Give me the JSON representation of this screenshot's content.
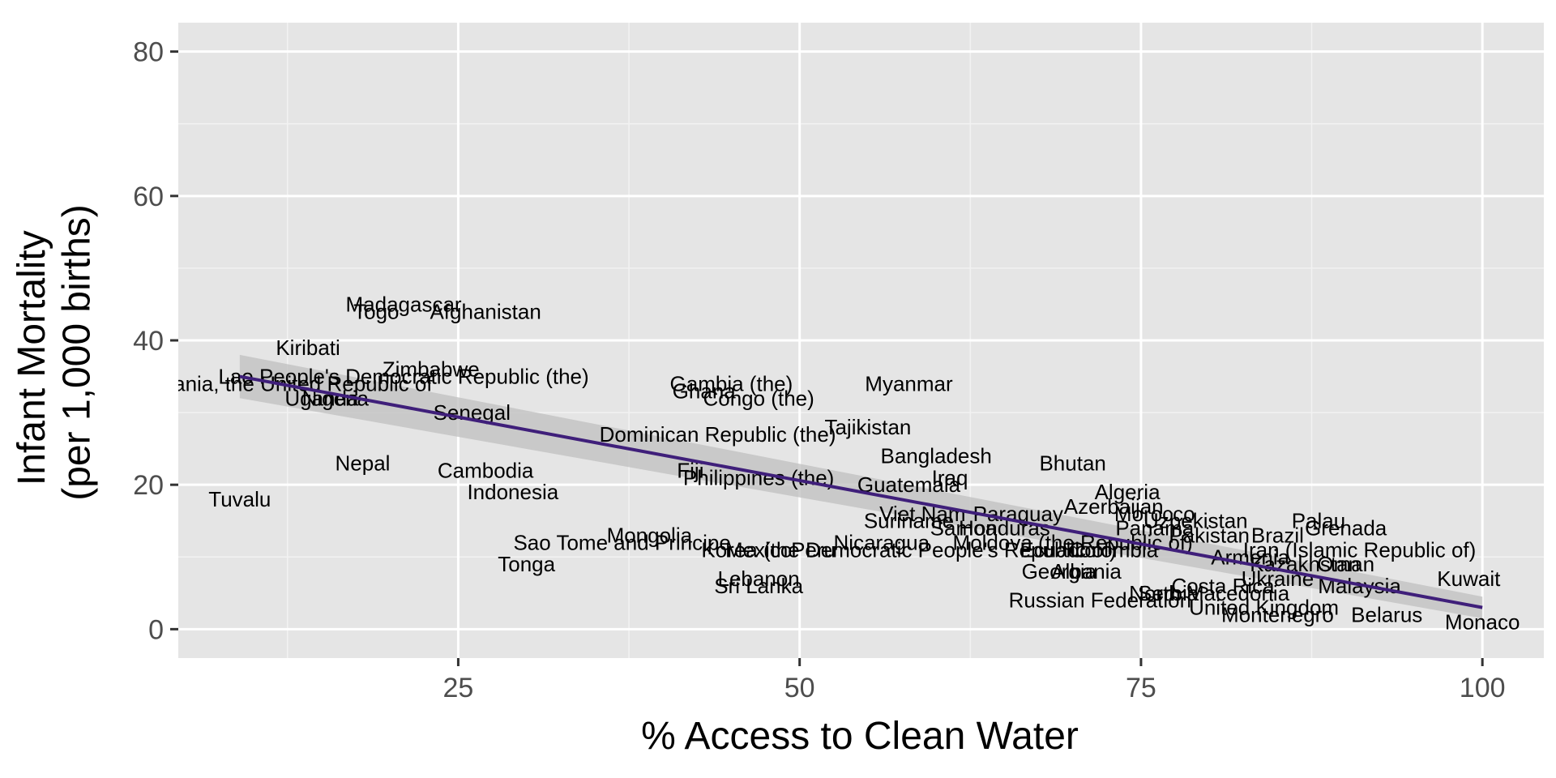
{
  "chart_data": {
    "type": "scatter",
    "xlabel": "% Access to Clean Water",
    "ylabel": [
      "Infant Mortality",
      "(per 1,000 births)"
    ],
    "xlim": [
      4.5,
      104.5
    ],
    "ylim": [
      -4,
      84
    ],
    "x_ticks": [
      25,
      50,
      75,
      100
    ],
    "y_ticks": [
      0,
      20,
      40,
      60,
      80
    ],
    "x_ticks_labels": [
      "25",
      "50",
      "75",
      "100"
    ],
    "y_ticks_labels": [
      "0",
      "20",
      "40",
      "60",
      "80"
    ],
    "grid": true,
    "points": [
      {
        "label": "Madagascar",
        "x": 21,
        "y": 45
      },
      {
        "label": "Togo",
        "x": 19,
        "y": 44
      },
      {
        "label": "Afghanistan",
        "x": 27,
        "y": 44
      },
      {
        "label": "Kiribati",
        "x": 14,
        "y": 39
      },
      {
        "label": "Zimbabwe",
        "x": 23,
        "y": 36
      },
      {
        "label": "Lao People's Democratic Republic (the)",
        "x": 21,
        "y": 35
      },
      {
        "label": "Tanzania, the United Republic of",
        "x": 12,
        "y": 34
      },
      {
        "label": "Uganda",
        "x": 15,
        "y": 32
      },
      {
        "label": "Nigeria",
        "x": 16,
        "y": 32
      },
      {
        "label": "Senegal",
        "x": 26,
        "y": 30
      },
      {
        "label": "Nepal",
        "x": 18,
        "y": 23
      },
      {
        "label": "Cambodia",
        "x": 27,
        "y": 22
      },
      {
        "label": "Indonesia",
        "x": 29,
        "y": 19
      },
      {
        "label": "Tuvalu",
        "x": 9,
        "y": 18
      },
      {
        "label": "Sao Tome and Principe",
        "x": 37,
        "y": 12
      },
      {
        "label": "Mongolia",
        "x": 39,
        "y": 13
      },
      {
        "label": "Mexico",
        "x": 47,
        "y": 11
      },
      {
        "label": "Tonga",
        "x": 30,
        "y": 9
      },
      {
        "label": "Gambia (the)",
        "x": 45,
        "y": 34
      },
      {
        "label": "Ghana",
        "x": 43,
        "y": 33
      },
      {
        "label": "Congo (the)",
        "x": 47,
        "y": 32
      },
      {
        "label": "Myanmar",
        "x": 58,
        "y": 34
      },
      {
        "label": "Dominican Republic (the)",
        "x": 44,
        "y": 27
      },
      {
        "label": "Tajikistan",
        "x": 55,
        "y": 28
      },
      {
        "label": "Bangladesh",
        "x": 60,
        "y": 24
      },
      {
        "label": "Fiji",
        "x": 42,
        "y": 22
      },
      {
        "label": "Iraq",
        "x": 61,
        "y": 21
      },
      {
        "label": "Philippines (the)",
        "x": 47,
        "y": 21
      },
      {
        "label": "Guatemala",
        "x": 58,
        "y": 20
      },
      {
        "label": "Bhutan",
        "x": 70,
        "y": 23
      },
      {
        "label": "Algeria",
        "x": 74,
        "y": 19
      },
      {
        "label": "Azerbaijan",
        "x": 73,
        "y": 17
      },
      {
        "label": "Viet Nam",
        "x": 59,
        "y": 16
      },
      {
        "label": "Paraguay",
        "x": 66,
        "y": 16
      },
      {
        "label": "Suriname",
        "x": 58,
        "y": 15
      },
      {
        "label": "Samoa",
        "x": 62,
        "y": 14
      },
      {
        "label": "Honduras",
        "x": 65,
        "y": 14
      },
      {
        "label": "Morocco",
        "x": 76,
        "y": 16
      },
      {
        "label": "Uzbekistan",
        "x": 79,
        "y": 15
      },
      {
        "label": "Panama",
        "x": 76,
        "y": 14
      },
      {
        "label": "Pakistan",
        "x": 80,
        "y": 13
      },
      {
        "label": "Brazil",
        "x": 85,
        "y": 13
      },
      {
        "label": "Palau",
        "x": 88,
        "y": 15
      },
      {
        "label": "Grenada",
        "x": 90,
        "y": 14
      },
      {
        "label": "Korea (the Democratic People's Republic of)",
        "x": 58,
        "y": 11
      },
      {
        "label": "Nicaragua",
        "x": 56,
        "y": 12
      },
      {
        "label": "Peru",
        "x": 51,
        "y": 11
      },
      {
        "label": "Moldova (the Republic of)",
        "x": 70,
        "y": 12
      },
      {
        "label": "Ecuador",
        "x": 69,
        "y": 11
      },
      {
        "label": "Colombia",
        "x": 73,
        "y": 11
      },
      {
        "label": "Iran (Islamic Republic of)",
        "x": 91,
        "y": 11
      },
      {
        "label": "Armenia",
        "x": 83,
        "y": 10
      },
      {
        "label": "Kazakhstan",
        "x": 87,
        "y": 9
      },
      {
        "label": "Oman",
        "x": 90,
        "y": 9
      },
      {
        "label": "Kuwait",
        "x": 99,
        "y": 7
      },
      {
        "label": "Georgia",
        "x": 69,
        "y": 8
      },
      {
        "label": "Albania",
        "x": 71,
        "y": 8
      },
      {
        "label": "Costa Rica",
        "x": 81,
        "y": 6
      },
      {
        "label": "Ukraine",
        "x": 85,
        "y": 7
      },
      {
        "label": "Malaysia",
        "x": 91,
        "y": 6
      },
      {
        "label": "Lebanon",
        "x": 47,
        "y": 7
      },
      {
        "label": "Sri Lanka",
        "x": 47,
        "y": 6
      },
      {
        "label": "Russian Federation",
        "x": 72,
        "y": 4
      },
      {
        "label": "Serbia",
        "x": 77,
        "y": 5
      },
      {
        "label": "North Macedonia",
        "x": 80,
        "y": 5
      },
      {
        "label": "United Kingdom",
        "x": 84,
        "y": 3
      },
      {
        "label": "Montenegro",
        "x": 85,
        "y": 2
      },
      {
        "label": "Belarus",
        "x": 93,
        "y": 2
      },
      {
        "label": "Monaco",
        "x": 100,
        "y": 1
      }
    ],
    "trend": {
      "type": "linear",
      "x_range": [
        9,
        100
      ],
      "y_start": 35,
      "y_end": 3,
      "band_start": [
        32,
        38
      ],
      "band_end": [
        1.5,
        4.5
      ]
    }
  },
  "colors": {
    "panel": "#e5e5e5",
    "grid_major": "#ffffff",
    "grid_minor": "#f2f2f2",
    "trend_line": "#3f1f7a",
    "band": "#bfbfbf"
  }
}
